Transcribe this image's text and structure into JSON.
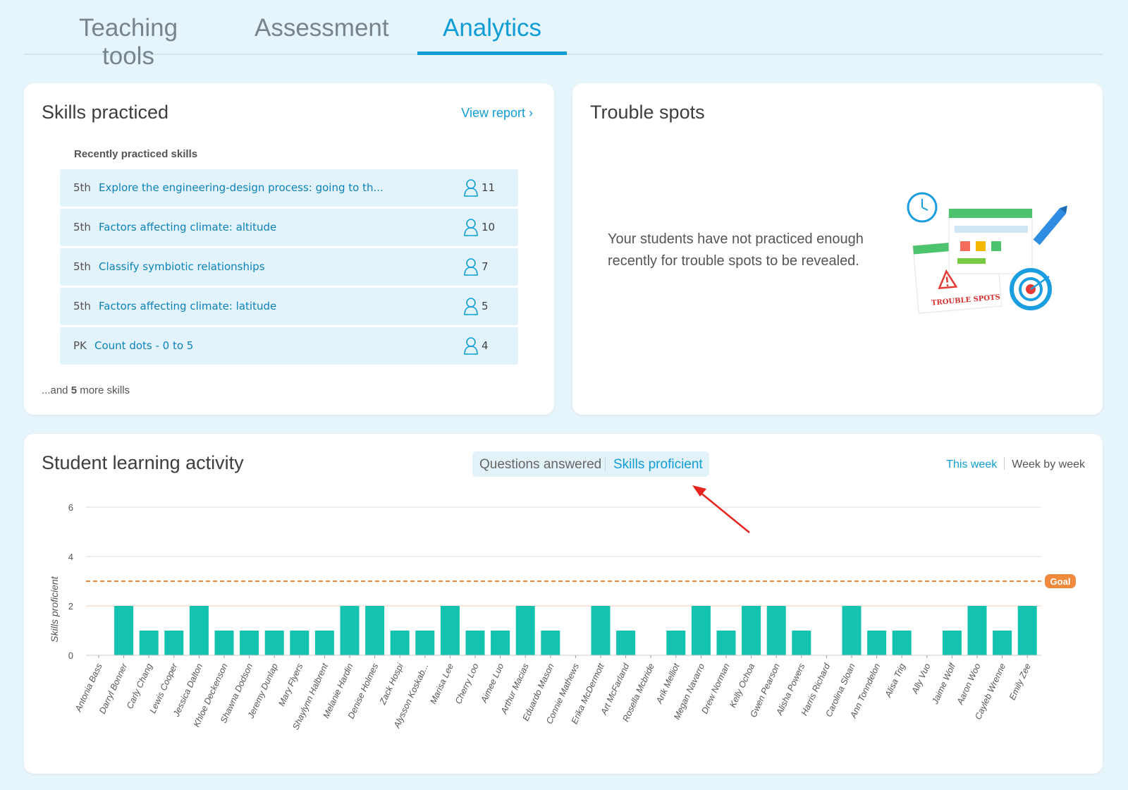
{
  "tabs": [
    {
      "label": "Teaching tools",
      "active": false
    },
    {
      "label": "Assessment",
      "active": false
    },
    {
      "label": "Analytics",
      "active": true
    }
  ],
  "skills_practiced": {
    "title": "Skills practiced",
    "view_report": "View report ›",
    "recent_label": "Recently practiced skills",
    "items": [
      {
        "grade": "5th",
        "name": "Explore the engineering-design process: going to th...",
        "count": "11"
      },
      {
        "grade": "5th",
        "name": "Factors affecting climate: altitude",
        "count": "10"
      },
      {
        "grade": "5th",
        "name": "Classify symbiotic relationships",
        "count": "7"
      },
      {
        "grade": "5th",
        "name": "Factors affecting climate: latitude",
        "count": "5"
      },
      {
        "grade": "PK",
        "name": "Count dots - 0 to 5",
        "count": "4"
      }
    ],
    "more_prefix": "...and ",
    "more_count": "5",
    "more_suffix": " more skills"
  },
  "trouble_spots": {
    "title": "Trouble spots",
    "message": "Your students have not practiced enough recently for trouble spots to be revealed.",
    "illustration_label": "TROUBLE SPOTS"
  },
  "activity": {
    "title": "Student learning activity",
    "toggle": {
      "option1": "Questions answered",
      "option2": "Skills proficient",
      "selected": "Skills proficient"
    },
    "range": {
      "option1": "This week",
      "option2": "Week by week",
      "selected": "This week"
    }
  },
  "colors": {
    "accent": "#109dd6",
    "bar": "#14c2b0",
    "goal": "#f08a3c",
    "background": "#e6f4fb"
  },
  "chart_data": {
    "type": "bar",
    "ylabel": "Skills proficient",
    "ylim": [
      0,
      6
    ],
    "yticks": [
      0,
      2,
      4,
      6
    ],
    "goal": 3,
    "goal_label": "Goal",
    "categories": [
      "Antonia Bass",
      "Darryl Bonner",
      "Carly Chang",
      "Lewis Cooper",
      "Jessica Dalton",
      "Khloe Deckenson",
      "Shawna Dodson",
      "Jeremy Dunlap",
      "Mary Flyers",
      "Shaylynn Halbrent",
      "Melanie Hardin",
      "Denise Holmes",
      "Zack Hospi",
      "Alysson Koskab...",
      "Marisa Lee",
      "Cherry Loo",
      "Aimee Luo",
      "Arthur Macias",
      "Eduardo Mason",
      "Connie Mathews",
      "Erika McDermott",
      "Art McFarland",
      "Rosella Mcbride",
      "Arik Melliot",
      "Megan Navarro",
      "Drew Norman",
      "Kelly Ochoa",
      "Gwen Pearson",
      "Alisha Powers",
      "Harris Richard",
      "Carolina Sloan",
      "Ann Tonndelon",
      "Alisa Trig",
      "Ally Vuo",
      "Jaime Wolf",
      "Aaron Woo",
      "Cayleb Wrenne",
      "Emily Zee"
    ],
    "values": [
      0,
      2,
      1,
      1,
      2,
      1,
      1,
      1,
      1,
      1,
      2,
      2,
      1,
      1,
      2,
      1,
      1,
      2,
      1,
      0,
      2,
      1,
      0,
      1,
      2,
      1,
      2,
      2,
      1,
      0,
      2,
      1,
      1,
      0,
      1,
      2,
      1,
      2
    ],
    "grid": true
  }
}
